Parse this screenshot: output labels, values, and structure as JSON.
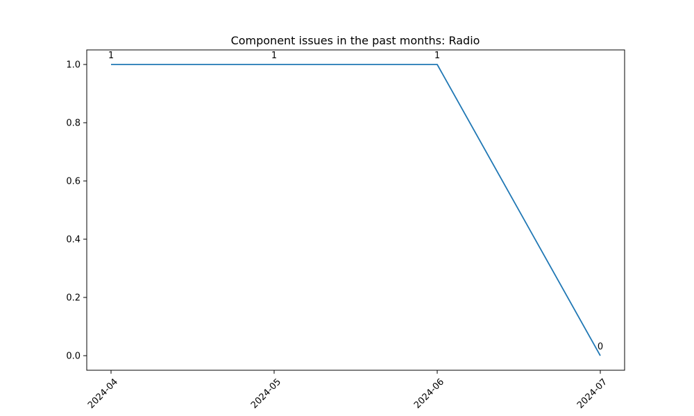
{
  "chart_data": {
    "type": "line",
    "title": "Component issues in the past months: Radio",
    "xlabel": "",
    "ylabel": "",
    "categories": [
      "2024-04",
      "2024-05",
      "2024-06",
      "2024-07"
    ],
    "series": [
      {
        "values": [
          1,
          1,
          1,
          0
        ],
        "color": "#1f77b4"
      }
    ],
    "data_labels": [
      "1",
      "1",
      "1",
      "0"
    ],
    "ylim": [
      -0.05,
      1.05
    ],
    "yticks": [
      0.0,
      0.2,
      0.4,
      0.6,
      0.8,
      1.0
    ],
    "ytick_labels": [
      "0.0",
      "0.2",
      "0.4",
      "0.6",
      "0.8",
      "1.0"
    ],
    "xtick_rotation": "45-degree",
    "grid": false,
    "legend": "none"
  }
}
